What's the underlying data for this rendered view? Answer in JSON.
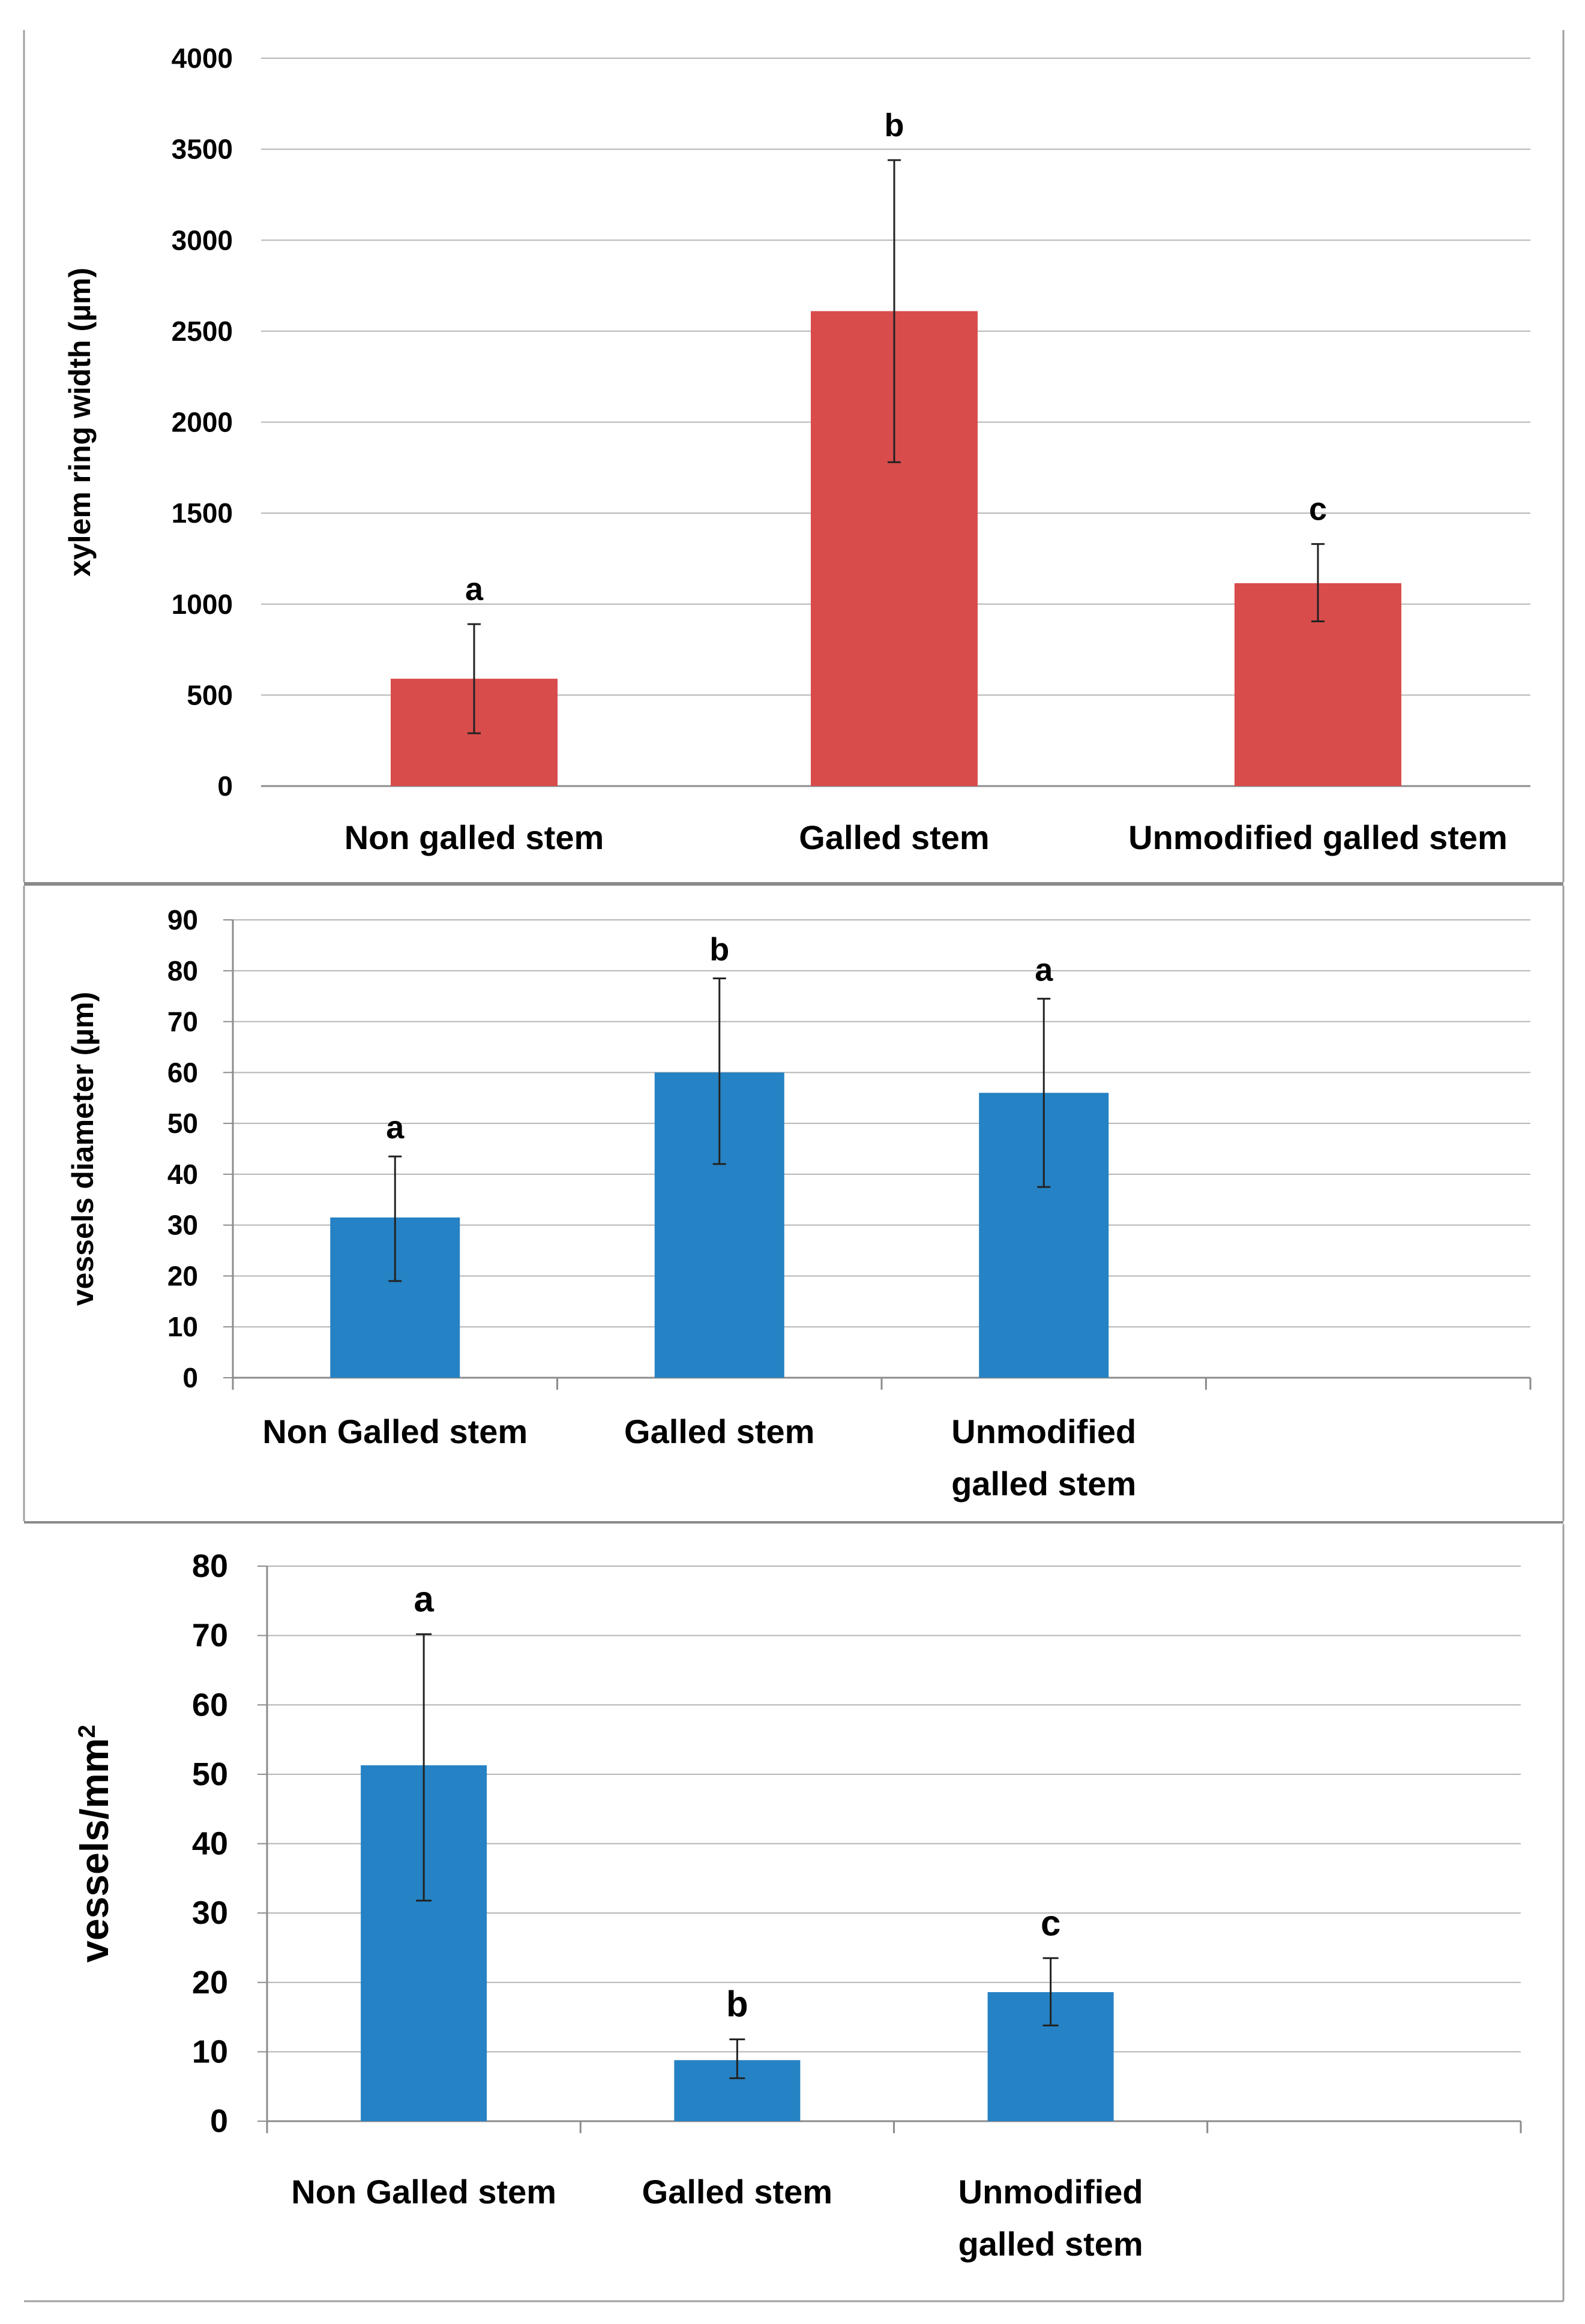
{
  "chart_data": [
    {
      "type": "bar",
      "title": "",
      "ylabel": "xylem ring width (µm)",
      "xlabel": "",
      "ylim": [
        0,
        4000
      ],
      "yticks": [
        "0",
        "500",
        "1000",
        "1500",
        "2000",
        "2500",
        "3000",
        "3500",
        "4000"
      ],
      "grid": true,
      "bar_color": "#d94c4c",
      "categories": [
        {
          "label_lines": [
            "Non galled stem"
          ],
          "value": 590,
          "err_low": 290,
          "err_high": 890,
          "sig": "a"
        },
        {
          "label_lines": [
            "Galled stem"
          ],
          "value": 2610,
          "err_low": 1780,
          "err_high": 3440,
          "sig": "b"
        },
        {
          "label_lines": [
            "Unmodified galled stem"
          ],
          "value": 1115,
          "err_low": 905,
          "err_high": 1330,
          "sig": "c"
        }
      ]
    },
    {
      "type": "bar",
      "title": "",
      "ylabel": "vessels diameter (µm)",
      "xlabel": "",
      "ylim": [
        0,
        90
      ],
      "yticks": [
        "0",
        "10",
        "20",
        "30",
        "40",
        "50",
        "60",
        "70",
        "80",
        "90"
      ],
      "grid": true,
      "bar_color": "#2582c4",
      "categories": [
        {
          "label_lines": [
            "Non Galled stem"
          ],
          "value": 31.5,
          "err_low": 19,
          "err_high": 43.5,
          "sig": "a"
        },
        {
          "label_lines": [
            "Galled stem"
          ],
          "value": 60,
          "err_low": 42,
          "err_high": 78.5,
          "sig": "b"
        },
        {
          "label_lines": [
            "Unmodified",
            "galled stem"
          ],
          "value": 56,
          "err_low": 37.5,
          "err_high": 74.5,
          "sig": "a"
        },
        {
          "label_lines": [
            ""
          ],
          "value": null,
          "err_low": null,
          "err_high": null,
          "sig": ""
        }
      ]
    },
    {
      "type": "bar",
      "title": "",
      "ylabel": "vessels/mm",
      "ylabel_superscript": "2",
      "xlabel": "",
      "ylim": [
        0,
        80
      ],
      "yticks": [
        "0",
        "10",
        "20",
        "30",
        "40",
        "50",
        "60",
        "70",
        "80"
      ],
      "grid": true,
      "bar_color": "#2582c4",
      "categories": [
        {
          "label_lines": [
            "Non Galled stem"
          ],
          "value": 51.3,
          "err_low": 31.8,
          "err_high": 70.2,
          "sig": "a"
        },
        {
          "label_lines": [
            "Galled stem"
          ],
          "value": 8.8,
          "err_low": 6.2,
          "err_high": 11.8,
          "sig": "b"
        },
        {
          "label_lines": [
            "Unmodified",
            "galled stem"
          ],
          "value": 18.6,
          "err_low": 13.8,
          "err_high": 23.5,
          "sig": "c"
        },
        {
          "label_lines": [
            ""
          ],
          "value": null,
          "err_low": null,
          "err_high": null,
          "sig": ""
        }
      ]
    }
  ]
}
